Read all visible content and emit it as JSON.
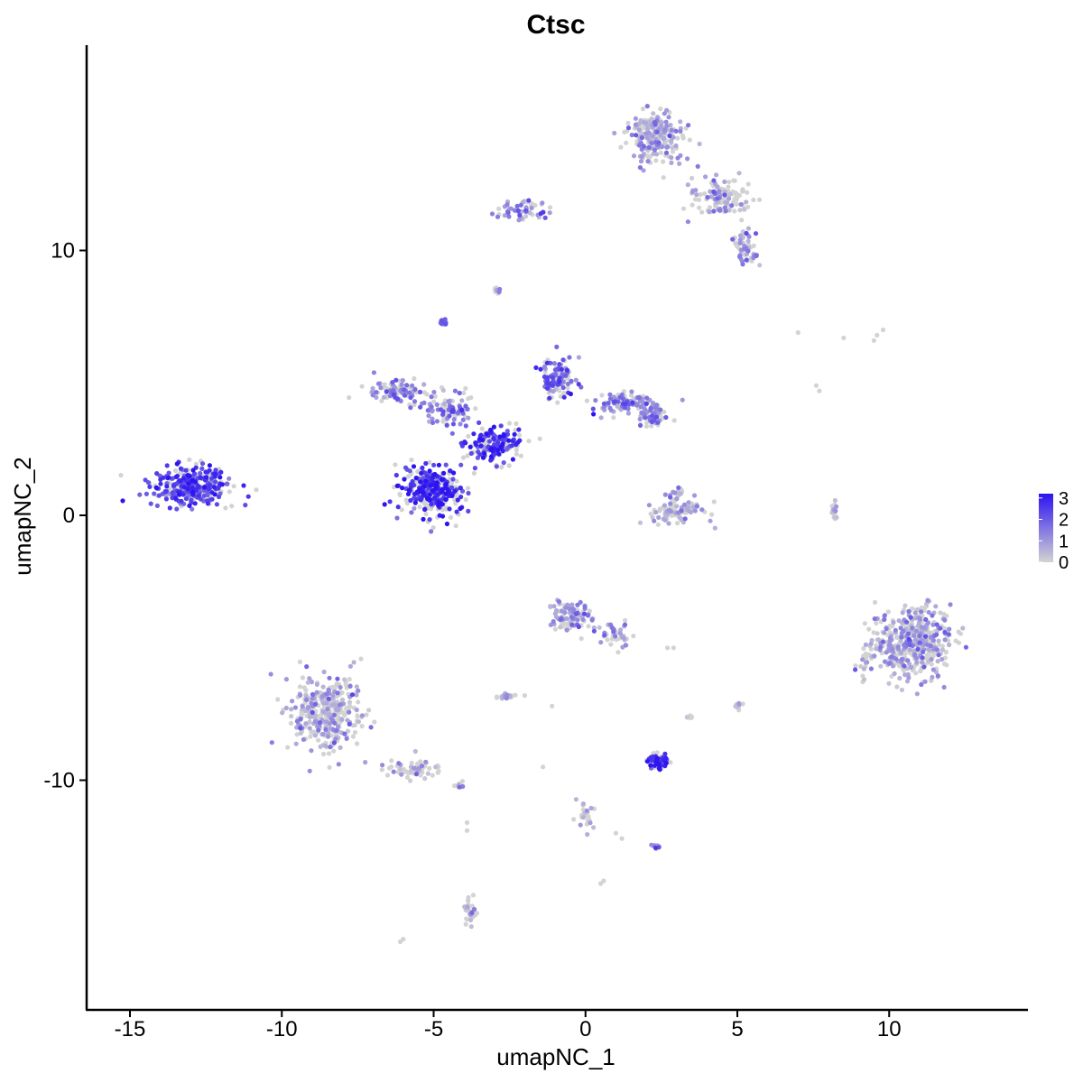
{
  "chart_data": {
    "type": "scatter",
    "title": "Ctsc",
    "xlabel": "umapNC_1",
    "ylabel": "umapNC_2",
    "xlim": [
      -16.4,
      14.3
    ],
    "ylim": [
      -18.4,
      17.9
    ],
    "xticks": [
      -15,
      -10,
      -5,
      0,
      5,
      10
    ],
    "yticks": [
      -10,
      0,
      10
    ],
    "color_scale": {
      "low": "#d3d3d3",
      "high": "#2d14f0",
      "min": 0,
      "max": 3.2,
      "ticks": [
        0,
        1,
        2,
        3
      ]
    },
    "clusters": [
      {
        "center": [
          -13.0,
          1.1
        ],
        "spread": [
          1.2,
          0.65
        ],
        "n": 320,
        "expr_mean": 2.3
      },
      {
        "center": [
          -5.0,
          0.9
        ],
        "spread": [
          1.0,
          0.85
        ],
        "n": 330,
        "expr_mean": 2.7
      },
      {
        "center": [
          -3.0,
          2.7
        ],
        "spread": [
          0.8,
          0.6
        ],
        "n": 170,
        "expr_mean": 2.4
      },
      {
        "center": [
          -6.3,
          4.7
        ],
        "spread": [
          0.9,
          0.4
        ],
        "n": 100,
        "expr_mean": 1.3
      },
      {
        "center": [
          -4.5,
          4.0
        ],
        "spread": [
          0.9,
          0.6
        ],
        "n": 90,
        "expr_mean": 1.4
      },
      {
        "center": [
          -0.9,
          5.2
        ],
        "spread": [
          0.5,
          0.8
        ],
        "n": 120,
        "expr_mean": 1.8
      },
      {
        "center": [
          1.3,
          4.2
        ],
        "spread": [
          0.9,
          0.35
        ],
        "n": 100,
        "expr_mean": 1.4
      },
      {
        "center": [
          2.2,
          3.8
        ],
        "spread": [
          0.4,
          0.4
        ],
        "n": 60,
        "expr_mean": 1.2
      },
      {
        "center": [
          -4.7,
          7.3
        ],
        "spread": [
          0.1,
          0.15
        ],
        "n": 15,
        "expr_mean": 1.5
      },
      {
        "center": [
          -2.9,
          8.5
        ],
        "spread": [
          0.08,
          0.12
        ],
        "n": 8,
        "expr_mean": 1.5
      },
      {
        "center": [
          2.3,
          14.3
        ],
        "spread": [
          0.8,
          0.9
        ],
        "n": 230,
        "expr_mean": 0.8
      },
      {
        "center": [
          4.5,
          12.0
        ],
        "spread": [
          0.9,
          0.6
        ],
        "n": 120,
        "expr_mean": 0.7
      },
      {
        "center": [
          5.3,
          10.2
        ],
        "spread": [
          0.4,
          0.6
        ],
        "n": 60,
        "expr_mean": 0.9
      },
      {
        "center": [
          -2.0,
          11.5
        ],
        "spread": [
          0.9,
          0.3
        ],
        "n": 60,
        "expr_mean": 1.0
      },
      {
        "center": [
          3.0,
          0.1
        ],
        "spread": [
          0.9,
          0.35
        ],
        "n": 90,
        "expr_mean": 0.35
      },
      {
        "center": [
          3.0,
          0.9
        ],
        "spread": [
          0.25,
          0.3
        ],
        "n": 20,
        "expr_mean": 1.0
      },
      {
        "center": [
          8.2,
          0.2
        ],
        "spread": [
          0.12,
          0.35
        ],
        "n": 15,
        "expr_mean": 0.4
      },
      {
        "center": [
          10.8,
          -4.8
        ],
        "spread": [
          1.1,
          1.2
        ],
        "n": 460,
        "expr_mean": 0.7
      },
      {
        "center": [
          9.2,
          -5.5
        ],
        "spread": [
          0.3,
          0.6
        ],
        "n": 25,
        "expr_mean": 0.5
      },
      {
        "center": [
          -8.5,
          -7.5
        ],
        "spread": [
          1.0,
          1.3
        ],
        "n": 360,
        "expr_mean": 0.6
      },
      {
        "center": [
          -5.8,
          -9.6
        ],
        "spread": [
          1.0,
          0.35
        ],
        "n": 60,
        "expr_mean": 0.4
      },
      {
        "center": [
          -4.2,
          -10.2
        ],
        "spread": [
          0.25,
          0.15
        ],
        "n": 12,
        "expr_mean": 0.3
      },
      {
        "center": [
          -0.5,
          -3.8
        ],
        "spread": [
          0.6,
          0.5
        ],
        "n": 110,
        "expr_mean": 0.8
      },
      {
        "center": [
          0.9,
          -4.5
        ],
        "spread": [
          0.5,
          0.4
        ],
        "n": 40,
        "expr_mean": 1.0
      },
      {
        "center": [
          -2.6,
          -6.8
        ],
        "spread": [
          0.3,
          0.1
        ],
        "n": 25,
        "expr_mean": 0.3
      },
      {
        "center": [
          2.4,
          -9.3
        ],
        "spread": [
          0.3,
          0.3
        ],
        "n": 60,
        "expr_mean": 2.7
      },
      {
        "center": [
          2.3,
          -12.5
        ],
        "spread": [
          0.2,
          0.1
        ],
        "n": 10,
        "expr_mean": 1.5
      },
      {
        "center": [
          0.0,
          -11.3
        ],
        "spread": [
          0.3,
          0.5
        ],
        "n": 25,
        "expr_mean": 0.3
      },
      {
        "center": [
          -3.8,
          -15.0
        ],
        "spread": [
          0.15,
          0.45
        ],
        "n": 30,
        "expr_mean": 0.4
      },
      {
        "center": [
          5.0,
          -7.2
        ],
        "spread": [
          0.1,
          0.12
        ],
        "n": 10,
        "expr_mean": 0.6
      },
      {
        "center": [
          3.4,
          -7.6
        ],
        "spread": [
          0.08,
          0.12
        ],
        "n": 6,
        "expr_mean": 0.3
      }
    ],
    "scattered_points": [
      [
        7.0,
        6.9
      ],
      [
        8.5,
        6.7
      ],
      [
        9.6,
        6.8
      ],
      [
        9.8,
        7.0
      ],
      [
        9.5,
        6.6
      ],
      [
        7.6,
        4.9
      ],
      [
        7.7,
        4.7
      ],
      [
        -6.0,
        -16.0
      ],
      [
        -6.1,
        -16.1
      ],
      [
        0.6,
        -13.8
      ],
      [
        0.5,
        -13.9
      ],
      [
        -2.0,
        -6.8
      ],
      [
        -1.1,
        -7.2
      ],
      [
        -1.4,
        -9.5
      ],
      [
        2.7,
        -5.0
      ],
      [
        2.9,
        -5.0
      ],
      [
        -3.9,
        -11.6
      ],
      [
        -3.9,
        -11.9
      ],
      [
        1.0,
        -12.0
      ],
      [
        1.2,
        -12.2
      ]
    ]
  }
}
